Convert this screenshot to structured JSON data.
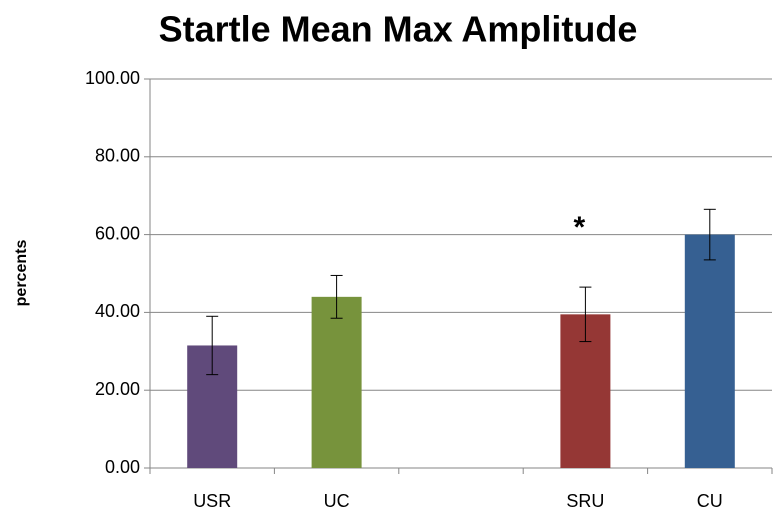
{
  "chart_data": {
    "type": "bar",
    "title": "Startle Mean Max Amplitude",
    "y_label": "percents",
    "categories": [
      "USR",
      "UC",
      null,
      "SRU",
      "CU"
    ],
    "values": [
      31.5,
      44,
      null,
      39.5,
      60
    ],
    "errors": [
      7.5,
      5.5,
      null,
      7,
      6.5
    ],
    "colors": [
      "#604a7b",
      "#77933c",
      null,
      "#953735",
      "#366092"
    ],
    "annotation": "*",
    "ylim": [
      0,
      100
    ],
    "yticks": [
      {
        "value": 0,
        "label": "0.00"
      },
      {
        "value": 20,
        "label": "20.00"
      },
      {
        "value": 40,
        "label": "40.00"
      },
      {
        "value": 60,
        "label": "60.00"
      },
      {
        "value": 80,
        "label": "80.00"
      },
      {
        "value": 100,
        "label": "100.00"
      }
    ],
    "grid": true
  }
}
